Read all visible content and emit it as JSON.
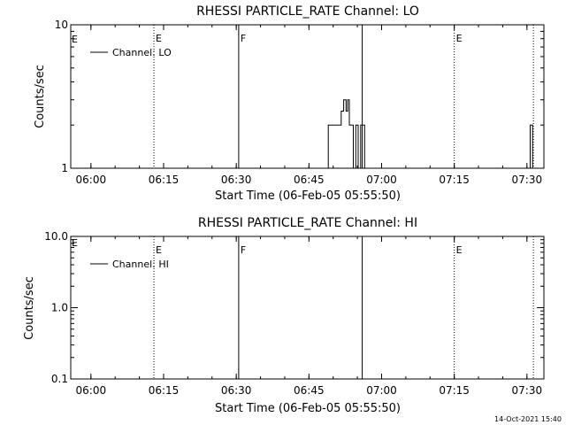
{
  "stamp": "14-Oct-2021 15:40",
  "chart_data": [
    {
      "type": "line",
      "title": "RHESSI PARTICLE_RATE Channel: LO",
      "xlabel": "Start Time (06-Feb-05 05:55:50)",
      "ylabel": "Counts/sec",
      "yscale": "log",
      "ylim": [
        1,
        10
      ],
      "yticks": [
        "1",
        "10"
      ],
      "xlim": [
        "05:55:50",
        "07:33:30"
      ],
      "xticks": [
        "06:00",
        "06:15",
        "06:30",
        "06:45",
        "07:00",
        "07:15",
        "07:30"
      ],
      "legend": {
        "position": "top-left",
        "entries": [
          "Channel: LO"
        ]
      },
      "vlines": [
        {
          "time": "06:13",
          "style": "dotted",
          "label": "E"
        },
        {
          "time": "06:30:30",
          "style": "solid",
          "label": "F"
        },
        {
          "time": "06:56",
          "style": "solid",
          "label": ""
        },
        {
          "time": "07:15",
          "style": "dotted",
          "label": "E"
        },
        {
          "time": "07:31:20",
          "style": "dotted",
          "label": ""
        }
      ],
      "corner_label": "E",
      "series": [
        {
          "name": "Channel: LO",
          "points": [
            [
              "06:49:00",
              1
            ],
            [
              "06:49:00",
              2
            ],
            [
              "06:51:40",
              2
            ],
            [
              "06:51:40",
              2.5
            ],
            [
              "06:52:10",
              2.5
            ],
            [
              "06:52:10",
              3
            ],
            [
              "06:52:40",
              3
            ],
            [
              "06:52:40",
              2.5
            ],
            [
              "06:53:00",
              2.5
            ],
            [
              "06:53:00",
              3
            ],
            [
              "06:53:20",
              3
            ],
            [
              "06:53:20",
              2
            ],
            [
              "06:54:10",
              2
            ],
            [
              "06:54:10",
              1
            ],
            [
              "06:54:40",
              1
            ],
            [
              "06:54:40",
              2
            ],
            [
              "06:55:10",
              2
            ],
            [
              "06:55:10",
              1
            ],
            [
              "06:55:40",
              1
            ],
            [
              "06:55:40",
              2
            ],
            [
              "06:56:30",
              2
            ],
            [
              "06:56:30",
              1
            ]
          ]
        },
        {
          "name": "Channel: LO",
          "points": [
            [
              "07:30:40",
              1
            ],
            [
              "07:30:40",
              2
            ],
            [
              "07:31:10",
              2
            ],
            [
              "07:31:10",
              1
            ]
          ]
        }
      ]
    },
    {
      "type": "line",
      "title": "RHESSI PARTICLE_RATE Channel: HI",
      "xlabel": "Start Time (06-Feb-05 05:55:50)",
      "ylabel": "Counts/sec",
      "yscale": "log",
      "ylim": [
        0.1,
        10
      ],
      "yticks": [
        "0.1",
        "1.0",
        "10.0"
      ],
      "xlim": [
        "05:55:50",
        "07:33:30"
      ],
      "xticks": [
        "06:00",
        "06:15",
        "06:30",
        "06:45",
        "07:00",
        "07:15",
        "07:30"
      ],
      "legend": {
        "position": "top-left",
        "entries": [
          "Channel: HI"
        ]
      },
      "vlines": [
        {
          "time": "06:13",
          "style": "dotted",
          "label": "E"
        },
        {
          "time": "06:30:30",
          "style": "solid",
          "label": "F"
        },
        {
          "time": "06:56",
          "style": "solid",
          "label": ""
        },
        {
          "time": "07:15",
          "style": "dotted",
          "label": "E"
        },
        {
          "time": "07:31:20",
          "style": "dotted",
          "label": ""
        }
      ],
      "corner_label": "E",
      "series": []
    }
  ]
}
